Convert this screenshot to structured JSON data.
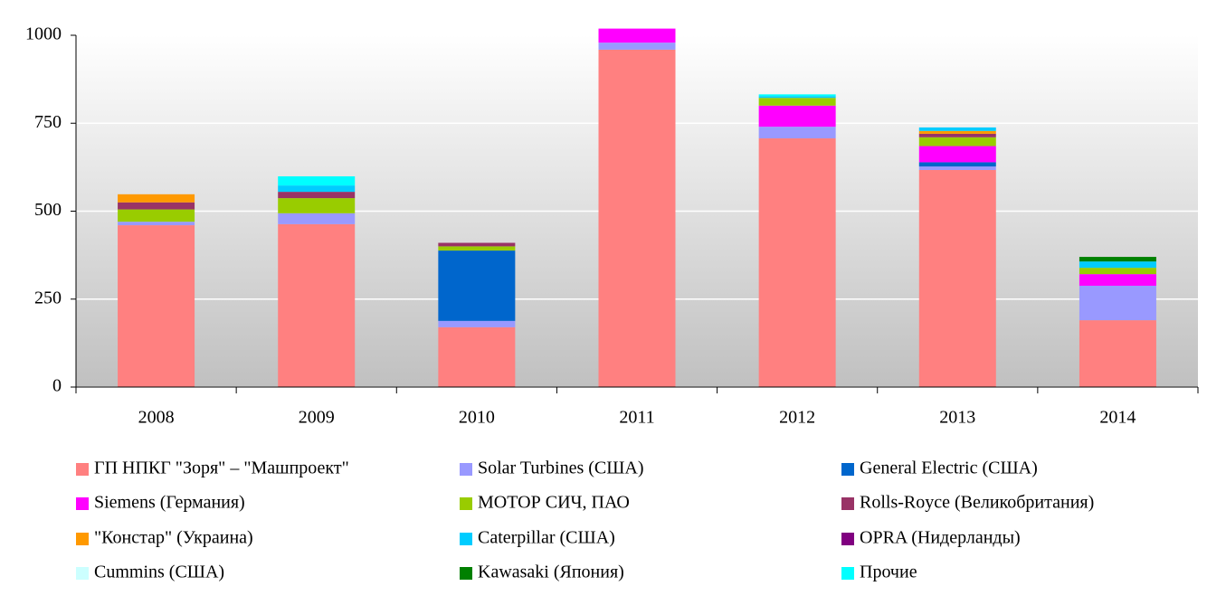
{
  "chart_data": {
    "type": "bar",
    "stacked": true,
    "categories": [
      "2008",
      "2009",
      "2010",
      "2011",
      "2012",
      "2013",
      "2014"
    ],
    "ylim": [
      0,
      1000
    ],
    "yticks": [
      0,
      250,
      500,
      750,
      1000
    ],
    "grid": true,
    "series": [
      {
        "name": "ГП НПКГ \"Зоря\" – \"Машпроект\"",
        "color": "#ff8080",
        "values": [
          460,
          463,
          170,
          959,
          707,
          617,
          190
        ]
      },
      {
        "name": "Solar Turbines (США)",
        "color": "#9999ff",
        "values": [
          10,
          31,
          18,
          20,
          33,
          10,
          98
        ]
      },
      {
        "name": "General Electric (США)",
        "color": "#0066cc",
        "values": [
          null,
          null,
          200,
          null,
          null,
          12,
          null
        ]
      },
      {
        "name": "Siemens (Германия)",
        "color": "#ff00ff",
        "values": [
          null,
          null,
          null,
          40,
          60,
          46,
          33
        ]
      },
      {
        "name": "МОТОР СИЧ, ПАО",
        "color": "#99cc00",
        "values": [
          35,
          43,
          12,
          null,
          22,
          25,
          18
        ]
      },
      {
        "name": "Rolls-Royce (Великобритания)",
        "color": "#993366",
        "values": [
          20,
          18,
          10,
          null,
          null,
          10,
          null
        ]
      },
      {
        "name": "\"Констар\" (Украина)",
        "color": "#ff9900",
        "values": [
          23,
          null,
          null,
          null,
          null,
          8,
          null
        ]
      },
      {
        "name": "Caterpillar (США)",
        "color": "#00ccff",
        "values": [
          null,
          18,
          null,
          null,
          5,
          10,
          18
        ]
      },
      {
        "name": "OPRA (Нидерланды)",
        "color": "#800080",
        "values": [
          null,
          null,
          null,
          null,
          null,
          null,
          null
        ]
      },
      {
        "name": "Cummins (США)",
        "color": "#ccffff",
        "values": [
          null,
          null,
          null,
          null,
          null,
          null,
          null
        ]
      },
      {
        "name": "Kawasaki (Япония)",
        "color": "#008000",
        "values": [
          null,
          null,
          null,
          null,
          null,
          null,
          13
        ]
      },
      {
        "name": "Прочие",
        "color": "#00ffff",
        "values": [
          null,
          26,
          null,
          null,
          5,
          null,
          null
        ]
      }
    ]
  }
}
